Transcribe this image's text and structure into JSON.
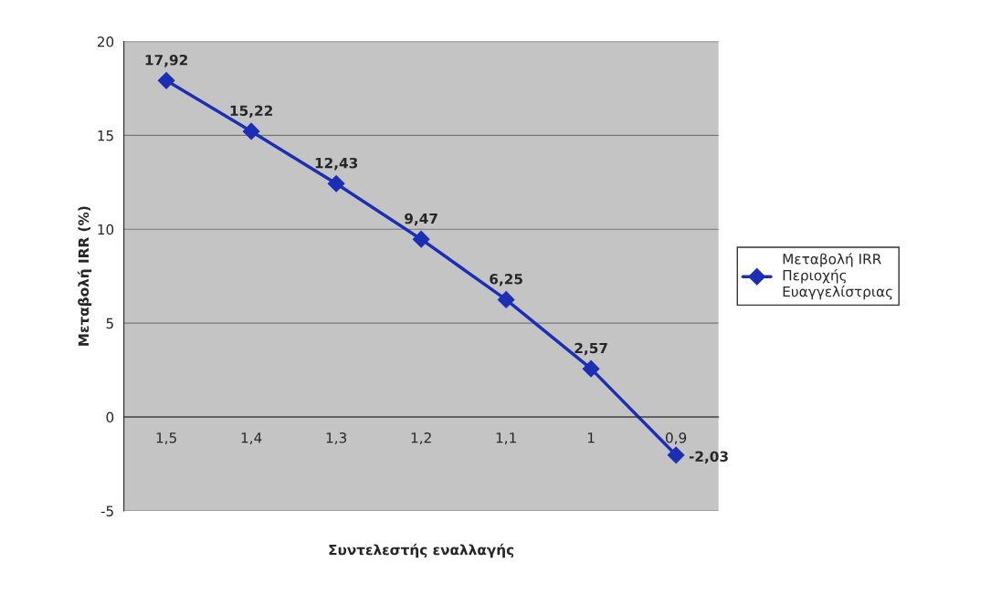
{
  "chart_data": {
    "type": "line",
    "xlabel": "Συντελεστής εναλλαγής",
    "ylabel": "Μεταβολή IRR (%)",
    "categories": [
      "1,5",
      "1,4",
      "1,3",
      "1,2",
      "1,1",
      "1",
      "0,9"
    ],
    "series": [
      {
        "name": "Μεταβολή IRR Περιοχής Ευαγγελίστριας",
        "color": "#1c2fb4",
        "values": [
          17.92,
          15.22,
          12.43,
          9.47,
          6.25,
          2.57,
          -2.03
        ]
      }
    ],
    "value_labels": [
      "17,92",
      "15,22",
      "12,43",
      "9,47",
      "6,25",
      "2,57",
      "-2,03"
    ],
    "ylim": [
      -5,
      20
    ],
    "yticks": [
      -5,
      0,
      5,
      10,
      15,
      20
    ],
    "grid": "y",
    "legend": "right",
    "marker": "diamond",
    "line_style": "solid"
  }
}
